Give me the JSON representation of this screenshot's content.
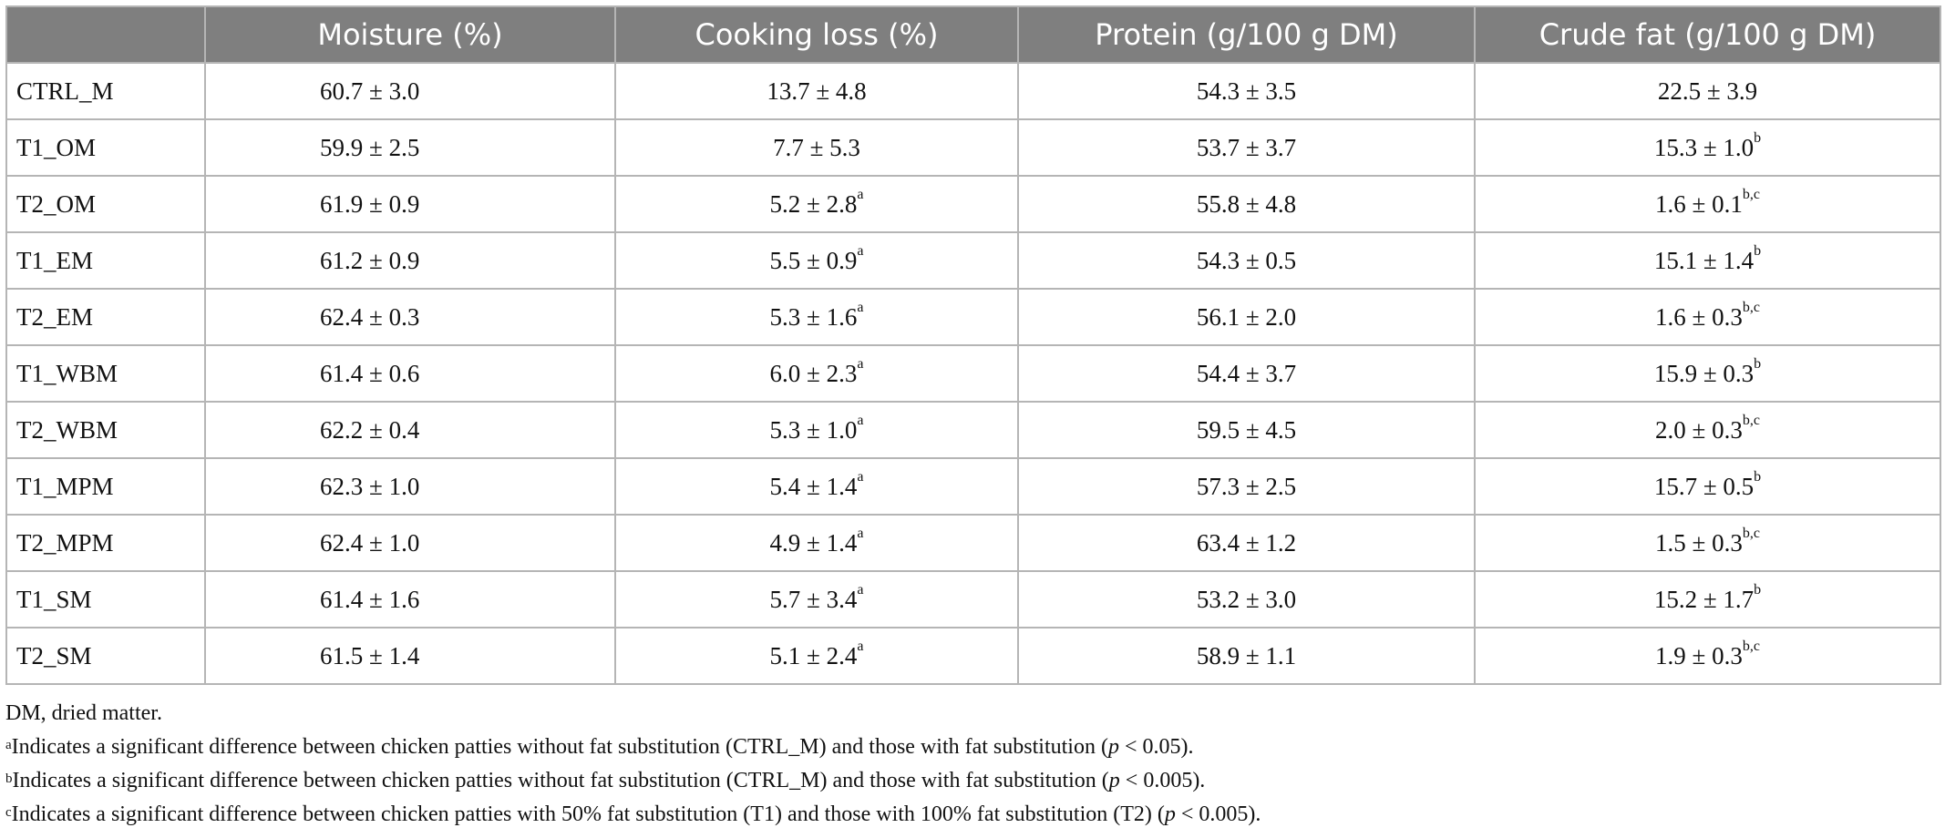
{
  "table": {
    "headers": [
      "",
      "Moisture (%)",
      "Cooking loss (%)",
      "Protein (g/100 g DM)",
      "Crude fat (g/100 g DM)"
    ],
    "rows": [
      {
        "label": "CTRL_M",
        "moisture": "60.7 ± 3.0",
        "cooking": "13.7 ± 4.8",
        "cooking_sup": "",
        "protein": "54.3 ± 3.5",
        "fat": "22.5 ± 3.9",
        "fat_sup": ""
      },
      {
        "label": "T1_OM",
        "moisture": "59.9 ± 2.5",
        "cooking": "7.7 ± 5.3",
        "cooking_sup": "",
        "protein": "53.7 ± 3.7",
        "fat": "15.3 ± 1.0",
        "fat_sup": "b"
      },
      {
        "label": "T2_OM",
        "moisture": "61.9 ± 0.9",
        "cooking": "5.2 ± 2.8",
        "cooking_sup": "a",
        "protein": "55.8 ± 4.8",
        "fat": "1.6 ± 0.1",
        "fat_sup": "b,c"
      },
      {
        "label": "T1_EM",
        "moisture": "61.2 ± 0.9",
        "cooking": "5.5 ± 0.9",
        "cooking_sup": "a",
        "protein": "54.3 ± 0.5",
        "fat": "15.1 ± 1.4",
        "fat_sup": "b"
      },
      {
        "label": "T2_EM",
        "moisture": "62.4 ± 0.3",
        "cooking": "5.3 ± 1.6",
        "cooking_sup": "a",
        "protein": "56.1 ± 2.0",
        "fat": "1.6 ± 0.3",
        "fat_sup": "b,c"
      },
      {
        "label": "T1_WBM",
        "moisture": "61.4 ± 0.6",
        "cooking": "6.0 ± 2.3",
        "cooking_sup": "a",
        "protein": "54.4 ± 3.7",
        "fat": "15.9 ± 0.3",
        "fat_sup": "b"
      },
      {
        "label": "T2_WBM",
        "moisture": "62.2 ± 0.4",
        "cooking": "5.3 ± 1.0",
        "cooking_sup": "a",
        "protein": "59.5 ± 4.5",
        "fat": "2.0 ± 0.3",
        "fat_sup": "b,c"
      },
      {
        "label": "T1_MPM",
        "moisture": "62.3 ± 1.0",
        "cooking": "5.4 ± 1.4",
        "cooking_sup": "a",
        "protein": "57.3 ± 2.5",
        "fat": "15.7 ± 0.5",
        "fat_sup": "b"
      },
      {
        "label": "T2_MPM",
        "moisture": "62.4 ± 1.0",
        "cooking": "4.9 ± 1.4",
        "cooking_sup": "a",
        "protein": "63.4 ± 1.2",
        "fat": "1.5 ± 0.3",
        "fat_sup": "b,c"
      },
      {
        "label": "T1_SM",
        "moisture": "61.4 ± 1.6",
        "cooking": "5.7 ± 3.4",
        "cooking_sup": "a",
        "protein": "53.2 ± 3.0",
        "fat": "15.2 ± 1.7",
        "fat_sup": "b"
      },
      {
        "label": "T2_SM",
        "moisture": "61.5 ± 1.4",
        "cooking": "5.1 ± 2.4",
        "cooking_sup": "a",
        "protein": "58.9 ± 1.1",
        "fat": "1.9 ± 0.3",
        "fat_sup": "b,c"
      }
    ]
  },
  "footnotes": {
    "dm": "DM, dried matter.",
    "a": {
      "mark": "a",
      "text": "Indicates a significant difference between chicken patties without fat substitution (CTRL_M) and those with fat substitution (",
      "p": "p",
      "tail": " < 0.05)."
    },
    "b": {
      "mark": "b",
      "text": "Indicates a significant difference between chicken patties without fat substitution (CTRL_M) and those with fat substitution (",
      "p": "p",
      "tail": " < 0.005)."
    },
    "c": {
      "mark": "c",
      "text": "Indicates a significant difference between chicken patties with 50% fat substitution (T1) and those with 100% fat substitution (T2) (",
      "p": "p",
      "tail": " < 0.005)."
    }
  }
}
